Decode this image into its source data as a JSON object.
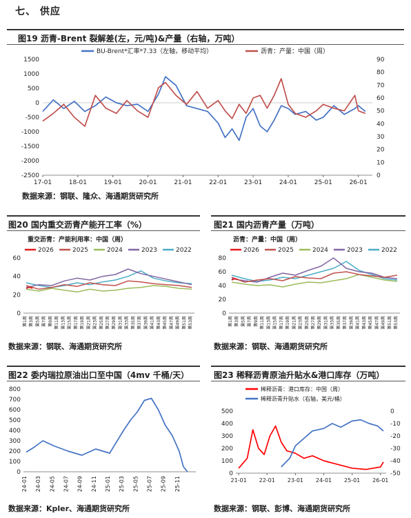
{
  "section": {
    "title": "七、  供应"
  },
  "figures": {
    "f19": {
      "title": "图19  沥青-Brent 裂解差(左，元/吨)&产量（右轴，万吨）",
      "source": "数据来源：钢联、隆众、海通期货研究所"
    },
    "f20": {
      "title": "图20  国内重交沥青产能开工率（%）",
      "source": "数据来源：钢联、海通期货研究所"
    },
    "f21": {
      "title": "图21  国内沥青产量（万吨）",
      "source": "数据来源：钢联、海通期货研究所"
    },
    "f22": {
      "title": "图22  委内瑞拉原油出口至中国（4mv 千桶/天）",
      "source": "数据来源：Kpler、海通期货研究所"
    },
    "f23": {
      "title": "图23  稀释沥青原油升贴水&港口库存（万吨）",
      "source": "数据来源：钢联、彭博、海通期货研究所"
    }
  },
  "chart_data": [
    {
      "id": "c19",
      "type": "line",
      "legend": [
        "BU-Brent*汇率*7.33（左轴，移动平均）",
        "沥青：产量：中国（周）"
      ],
      "x_ticks": [
        "17-01",
        "18-01",
        "19-01",
        "20-01",
        "21-01",
        "22-01",
        "23-01",
        "24-01",
        "25-01",
        "26-01"
      ],
      "y_left_ticks": [
        "1500",
        "1000",
        "500",
        "0",
        "-500",
        "-1000",
        "-1500",
        "-2000",
        "-2500"
      ],
      "y_right_ticks": [
        "90",
        "80",
        "70",
        "60",
        "50",
        "40",
        "30",
        "20",
        "10",
        "0"
      ],
      "ylim_left": [
        -2500,
        1500
      ],
      "ylim_right": [
        0,
        90
      ],
      "colors": [
        "#4472c4",
        "#c0504d"
      ],
      "series": [
        {
          "name": "BU-Brent*汇率*7.33（左轴，移动平均）",
          "axis": "left",
          "x": [
            2017.0,
            2017.3,
            2017.6,
            2017.9,
            2018.2,
            2018.5,
            2018.8,
            2019.1,
            2019.4,
            2019.7,
            2020.0,
            2020.3,
            2020.5,
            2020.8,
            2021.1,
            2021.4,
            2021.7,
            2022.0,
            2022.2,
            2022.4,
            2022.6,
            2022.8,
            2023.0,
            2023.2,
            2023.4,
            2023.6,
            2023.8,
            2024.0,
            2024.2,
            2024.5,
            2024.8,
            2025.0,
            2025.3,
            2025.6,
            2025.9,
            2026.0,
            2026.2
          ],
          "y": [
            -300,
            100,
            -200,
            50,
            -300,
            -100,
            200,
            0,
            -100,
            -50,
            -300,
            300,
            900,
            600,
            -100,
            -200,
            -300,
            -700,
            -1200,
            -900,
            -1300,
            -500,
            -200,
            -800,
            -1000,
            -600,
            -100,
            -200,
            -400,
            -300,
            -600,
            -500,
            -100,
            -400,
            -200,
            -100,
            -300
          ]
        },
        {
          "name": "沥青：产量：中国（周）",
          "axis": "right",
          "x": [
            2017.0,
            2017.3,
            2017.6,
            2017.9,
            2018.2,
            2018.5,
            2018.8,
            2019.1,
            2019.4,
            2019.7,
            2020.0,
            2020.3,
            2020.5,
            2020.8,
            2021.1,
            2021.4,
            2021.7,
            2022.0,
            2022.2,
            2022.4,
            2022.6,
            2022.8,
            2023.0,
            2023.2,
            2023.4,
            2023.6,
            2023.8,
            2024.0,
            2024.2,
            2024.5,
            2024.8,
            2025.0,
            2025.3,
            2025.6,
            2025.9,
            2026.0,
            2026.2
          ],
          "y": [
            42,
            48,
            55,
            45,
            38,
            62,
            52,
            48,
            58,
            50,
            45,
            68,
            72,
            62,
            55,
            65,
            52,
            58,
            50,
            44,
            55,
            48,
            60,
            62,
            52,
            62,
            75,
            55,
            48,
            45,
            50,
            55,
            52,
            50,
            62,
            50,
            48
          ]
        }
      ]
    },
    {
      "id": "c20",
      "type": "line",
      "title": "重交沥青：产能利用率：中国（周）",
      "legend": [
        "2026",
        "2025",
        "2024",
        "2023",
        "2022"
      ],
      "colors": [
        "#e31a1c",
        "#c0504d",
        "#9bbb59",
        "#8064a2",
        "#4bacc6"
      ],
      "y_ticks": [
        "60",
        "40",
        "20",
        "0"
      ],
      "ylim": [
        0,
        60
      ],
      "x_ticks": [
        "第1周",
        "第3周",
        "第5周",
        "第7周",
        "第9周",
        "第11周",
        "第13周",
        "第15周",
        "第17周",
        "第19周",
        "第21周",
        "第23周",
        "第25周",
        "第27周",
        "第29周",
        "第31周",
        "第33周",
        "第35周",
        "第37周",
        "第39周",
        "第41周",
        "第43周",
        "第45周",
        "第47周",
        "第49周",
        "第51周",
        "第53周"
      ],
      "series": [
        {
          "name": "2026",
          "x": [
            1,
            2,
            3
          ],
          "y": [
            27,
            28,
            27
          ]
        },
        {
          "name": "2025",
          "x": [
            1,
            5,
            9,
            13,
            17,
            21,
            25,
            29,
            33,
            37,
            41,
            45,
            49,
            53
          ],
          "y": [
            30,
            26,
            28,
            31,
            29,
            33,
            31,
            30,
            35,
            34,
            32,
            31,
            30,
            28
          ]
        },
        {
          "name": "2024",
          "x": [
            1,
            5,
            9,
            13,
            17,
            21,
            25,
            29,
            33,
            37,
            41,
            45,
            49,
            53
          ],
          "y": [
            26,
            24,
            27,
            25,
            23,
            26,
            24,
            25,
            27,
            28,
            30,
            29,
            27,
            26
          ]
        },
        {
          "name": "2023",
          "x": [
            1,
            5,
            9,
            13,
            17,
            21,
            25,
            29,
            33,
            37,
            41,
            45,
            49,
            53
          ],
          "y": [
            28,
            31,
            30,
            35,
            38,
            36,
            40,
            42,
            48,
            43,
            40,
            37,
            34,
            31
          ]
        },
        {
          "name": "2022",
          "x": [
            1,
            5,
            9,
            13,
            17,
            21,
            25,
            29,
            33,
            37,
            41,
            45,
            49,
            53
          ],
          "y": [
            33,
            30,
            28,
            30,
            33,
            31,
            34,
            36,
            40,
            46,
            38,
            35,
            33,
            32
          ]
        }
      ]
    },
    {
      "id": "c21",
      "type": "line",
      "title": "沥青：产量：中国（周）",
      "legend": [
        "2026",
        "2025",
        "2024",
        "2023",
        "2022"
      ],
      "colors": [
        "#e31a1c",
        "#c0504d",
        "#9bbb59",
        "#8064a2",
        "#4bacc6"
      ],
      "y_ticks": [
        "80",
        "60",
        "40",
        "20",
        "0"
      ],
      "ylim": [
        0,
        80
      ],
      "x_ticks": [
        "第1周",
        "第3周",
        "第5周",
        "第7周",
        "第9周",
        "第11周",
        "第13周",
        "第15周",
        "第17周",
        "第19周",
        "第21周",
        "第23周",
        "第25周",
        "第27周",
        "第29周",
        "第31周",
        "第33周",
        "第35周",
        "第37周",
        "第39周",
        "第41周",
        "第43周",
        "第45周",
        "第47周",
        "第49周",
        "第51周",
        "第53周"
      ],
      "series": [
        {
          "name": "2026",
          "x": [
            1,
            2,
            3
          ],
          "y": [
            48,
            50,
            49
          ]
        },
        {
          "name": "2025",
          "x": [
            1,
            5,
            9,
            13,
            17,
            21,
            25,
            29,
            33,
            37,
            41,
            45,
            49,
            53
          ],
          "y": [
            52,
            45,
            48,
            50,
            47,
            53,
            51,
            50,
            58,
            60,
            56,
            54,
            52,
            55
          ]
        },
        {
          "name": "2024",
          "x": [
            1,
            5,
            9,
            13,
            17,
            21,
            25,
            29,
            33,
            37,
            41,
            45,
            49,
            53
          ],
          "y": [
            45,
            42,
            40,
            41,
            38,
            42,
            45,
            44,
            47,
            50,
            56,
            52,
            48,
            46
          ]
        },
        {
          "name": "2023",
          "x": [
            1,
            5,
            9,
            13,
            17,
            21,
            25,
            29,
            33,
            37,
            41,
            45,
            49,
            53
          ],
          "y": [
            50,
            47,
            45,
            52,
            58,
            55,
            62,
            68,
            80,
            65,
            60,
            58,
            52,
            50
          ]
        },
        {
          "name": "2022",
          "x": [
            1,
            5,
            9,
            13,
            17,
            21,
            25,
            29,
            33,
            37,
            41,
            45,
            49,
            53
          ],
          "y": [
            55,
            50,
            46,
            48,
            52,
            50,
            55,
            60,
            65,
            75,
            62,
            56,
            50,
            48
          ]
        }
      ]
    },
    {
      "id": "c22",
      "type": "line",
      "y_ticks": [
        "800",
        "700",
        "600",
        "500",
        "400",
        "300",
        "200",
        "100",
        "0"
      ],
      "ylim": [
        0,
        800
      ],
      "x_ticks": [
        "24-01",
        "24-03",
        "24-05",
        "24-07",
        "24-09",
        "24-11",
        "25-01",
        "25-03",
        "25-05",
        "25-07",
        "25-09",
        "25-11"
      ],
      "colors": [
        "#4472c4"
      ],
      "series": [
        {
          "name": "",
          "x": [
            0,
            0.6,
            1.2,
            2,
            3,
            4,
            5,
            6,
            7,
            7.5,
            8,
            8.5,
            9,
            9.5,
            10,
            10.5,
            11,
            11.3,
            11.6
          ],
          "y": [
            190,
            240,
            300,
            250,
            200,
            160,
            220,
            180,
            400,
            500,
            580,
            690,
            710,
            600,
            450,
            350,
            200,
            50,
            0
          ]
        }
      ]
    },
    {
      "id": "c23",
      "type": "line",
      "legend": [
        "稀释沥青：港口库存：中国（周）",
        "稀释沥青升贴水（右轴，美元/桶）"
      ],
      "y_left_ticks": [
        "500",
        "400",
        "300",
        "200",
        "100",
        "0"
      ],
      "y_right_ticks": [
        "0",
        "-10",
        "-20",
        "-30",
        "-40",
        "-50"
      ],
      "ylim_left": [
        0,
        500
      ],
      "ylim_right": [
        -50,
        0
      ],
      "x_ticks": [
        "21-01",
        "22-01",
        "23-01",
        "24-01",
        "25-01",
        "26-01"
      ],
      "colors": [
        "#ff0000",
        "#4472c4"
      ],
      "series": [
        {
          "name": "稀释沥青：港口库存：中国（周）",
          "axis": "left",
          "x": [
            2021.0,
            2021.3,
            2021.5,
            2021.7,
            2021.9,
            2022.1,
            2022.3,
            2022.5,
            2022.7,
            2023.0,
            2023.3,
            2023.6,
            2024.0,
            2024.5,
            2025.0,
            2025.5,
            2026.0,
            2026.1
          ],
          "y": [
            40,
            120,
            350,
            200,
            150,
            300,
            380,
            250,
            180,
            160,
            120,
            140,
            100,
            70,
            40,
            30,
            50,
            90
          ]
        },
        {
          "name": "稀释沥青升贴水（右轴，美元/桶）",
          "axis": "right",
          "x": [
            2022.5,
            2022.8,
            2023.0,
            2023.3,
            2023.6,
            2024.0,
            2024.3,
            2024.6,
            2025.0,
            2025.3,
            2025.6,
            2025.9,
            2026.1
          ],
          "y": [
            -45,
            -38,
            -28,
            -22,
            -16,
            -14,
            -10,
            -13,
            -8,
            -7,
            -10,
            -12,
            -16
          ]
        }
      ]
    }
  ]
}
